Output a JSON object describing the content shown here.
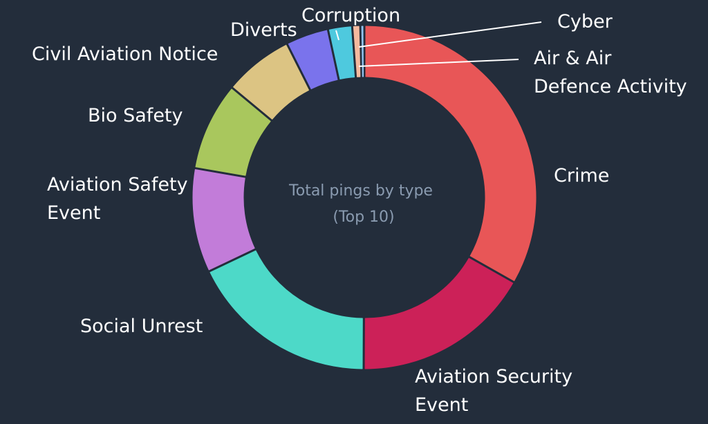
{
  "chart_data": {
    "type": "pie",
    "title": "Total pings by type",
    "subtitle": "(Top 10)",
    "slices": [
      {
        "label": "Crime",
        "value": 132,
        "color": "#e85657"
      },
      {
        "label": "Aviation Security Event",
        "value": 67,
        "color": "#cc2158"
      },
      {
        "label": "Social Unrest",
        "value": 71,
        "color": "#4dd9c8"
      },
      {
        "label": "Aviation Safety Event",
        "value": 39,
        "color": "#c27cd9"
      },
      {
        "label": "Bio Safety",
        "value": 33,
        "color": "#a9c75d"
      },
      {
        "label": "Civil Aviation Notice",
        "value": 26,
        "color": "#dcc483"
      },
      {
        "label": "Diverts",
        "value": 16,
        "color": "#7a73ec"
      },
      {
        "label": "Corruption",
        "value": 9,
        "color": "#4ec9de"
      },
      {
        "label": "Cyber",
        "value": 3,
        "color": "#f5b99e"
      },
      {
        "label": "Air & Air Defence Activity",
        "value": 1.5,
        "color": "#8fc3ef"
      }
    ],
    "legend": "none"
  },
  "labels": {
    "crime": "Crime",
    "aviation_security_line1": "Aviation Security",
    "aviation_security_line2": "Event",
    "social_unrest": "Social Unrest",
    "aviation_safety_line1": "Aviation Safety",
    "aviation_safety_line2": "Event",
    "bio_safety": "Bio Safety",
    "civil_aviation_notice": "Civil Aviation Notice",
    "diverts": "Diverts",
    "corruption": "Corruption",
    "cyber": "Cyber",
    "air_defence_line1": "Air & Air",
    "air_defence_line2": "Defence Activity"
  }
}
